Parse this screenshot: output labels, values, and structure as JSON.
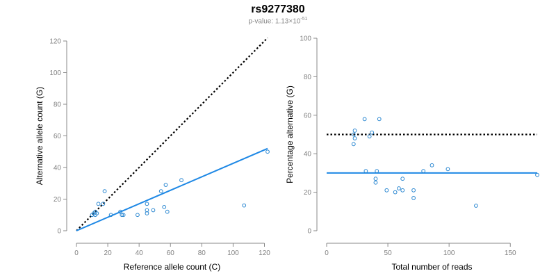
{
  "header": {
    "title": "rs9277380",
    "pvalue_prefix": "p-value: 1.13",
    "pvalue_times": "×10",
    "pvalue_exp": "-51"
  },
  "colors": {
    "points": "#2a87d1",
    "fit": "#1e88e5",
    "reference": "#000000",
    "axis": "#8a8a8a",
    "ticks": "#808080"
  },
  "chart_data": [
    {
      "type": "scatter",
      "xlabel": "Reference allele count (C)",
      "ylabel": "Alternative allele count (G)",
      "xlim": [
        0,
        122
      ],
      "ylim": [
        0,
        120
      ],
      "xticks": [
        0,
        20,
        40,
        60,
        80,
        100,
        120
      ],
      "yticks": [
        0,
        20,
        40,
        60,
        80,
        100,
        120
      ],
      "points": [
        [
          10,
          10
        ],
        [
          11,
          11
        ],
        [
          12,
          12
        ],
        [
          12,
          10
        ],
        [
          13,
          11
        ],
        [
          14,
          17
        ],
        [
          17,
          17
        ],
        [
          18,
          25
        ],
        [
          22,
          10
        ],
        [
          28,
          12
        ],
        [
          29,
          10
        ],
        [
          30,
          10
        ],
        [
          39,
          10
        ],
        [
          45,
          17
        ],
        [
          45,
          13
        ],
        [
          45,
          11
        ],
        [
          49,
          13
        ],
        [
          54,
          25
        ],
        [
          56,
          15
        ],
        [
          57,
          29
        ],
        [
          58,
          12
        ],
        [
          67,
          32
        ],
        [
          107,
          16
        ],
        [
          122,
          50
        ]
      ],
      "reference_line": {
        "style": "dotted",
        "x": [
          0,
          122
        ],
        "y": [
          0,
          122
        ]
      },
      "fit_line": {
        "style": "solid",
        "x": [
          0,
          122
        ],
        "y": [
          0,
          52
        ]
      }
    },
    {
      "type": "scatter",
      "xlabel": "Total number of reads",
      "ylabel": "Percentage alternative (G)",
      "xlim": [
        0,
        172
      ],
      "ylim": [
        0,
        100
      ],
      "xticks": [
        0,
        50,
        100,
        150
      ],
      "yticks": [
        0,
        20,
        40,
        60,
        80,
        100
      ],
      "points": [
        [
          22,
          50
        ],
        [
          22,
          45
        ],
        [
          23,
          52
        ],
        [
          23,
          48
        ],
        [
          31,
          58
        ],
        [
          32,
          31
        ],
        [
          35,
          49
        ],
        [
          37,
          51
        ],
        [
          40,
          27
        ],
        [
          40,
          25
        ],
        [
          41,
          31
        ],
        [
          43,
          58
        ],
        [
          49,
          21
        ],
        [
          56,
          20
        ],
        [
          59,
          22
        ],
        [
          62,
          27
        ],
        [
          62,
          21
        ],
        [
          71,
          21
        ],
        [
          71,
          17
        ],
        [
          79,
          31
        ],
        [
          86,
          34
        ],
        [
          99,
          32
        ],
        [
          122,
          13
        ],
        [
          172,
          29
        ]
      ],
      "reference_line": {
        "style": "dotted",
        "x": [
          0,
          172
        ],
        "y": [
          50,
          50
        ]
      },
      "fit_line": {
        "style": "solid",
        "x": [
          0,
          172
        ],
        "y": [
          30,
          30
        ]
      }
    }
  ]
}
